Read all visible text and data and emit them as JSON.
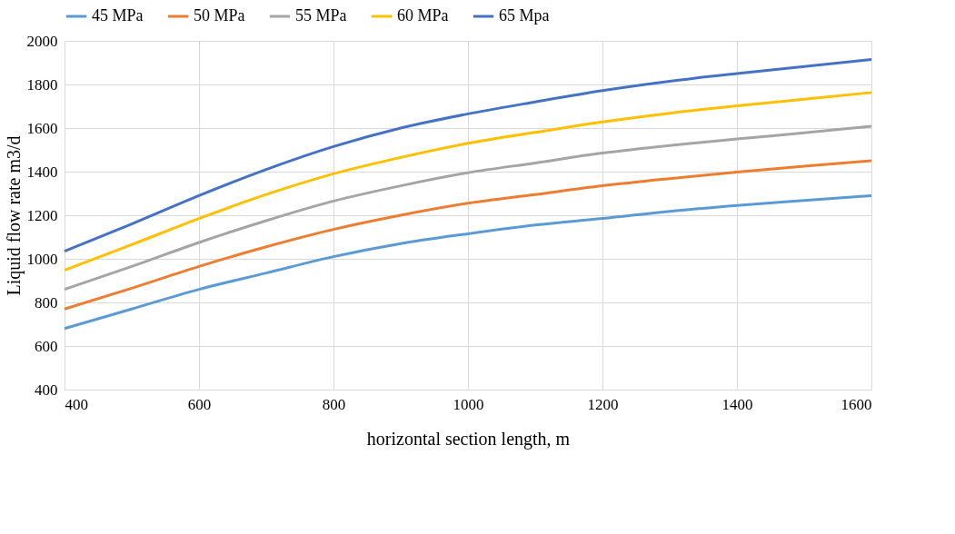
{
  "chart_data": {
    "type": "line",
    "xlabel": "horizontal section length, m",
    "ylabel": "Liquid flow rate m3/d",
    "x": [
      400,
      500,
      600,
      700,
      800,
      900,
      1000,
      1100,
      1200,
      1300,
      1400,
      1500,
      1600
    ],
    "series": [
      {
        "name": "45 MPa",
        "color": "#5b9bd5",
        "values": [
          680,
          770,
          860,
          935,
          1010,
          1070,
          1115,
          1155,
          1185,
          1218,
          1245,
          1268,
          1290
        ]
      },
      {
        "name": "50 MPa",
        "color": "#ed7d31",
        "values": [
          770,
          865,
          965,
          1055,
          1135,
          1200,
          1255,
          1295,
          1335,
          1368,
          1398,
          1425,
          1450
        ]
      },
      {
        "name": "55 MPa",
        "color": "#a5a5a5",
        "values": [
          860,
          965,
          1075,
          1175,
          1265,
          1335,
          1395,
          1440,
          1485,
          1520,
          1550,
          1578,
          1608
        ]
      },
      {
        "name": "60 MPa",
        "color": "#ffc000",
        "values": [
          948,
          1065,
          1185,
          1295,
          1390,
          1465,
          1530,
          1580,
          1628,
          1668,
          1702,
          1732,
          1763
        ]
      },
      {
        "name": "65 Mpa",
        "color": "#4472c4",
        "values": [
          1035,
          1160,
          1290,
          1410,
          1515,
          1600,
          1665,
          1720,
          1772,
          1815,
          1850,
          1882,
          1915
        ]
      }
    ],
    "xlim": [
      400,
      1600
    ],
    "xticks": [
      400,
      600,
      800,
      1000,
      1200,
      1400,
      1600
    ],
    "ylim": [
      400,
      2000
    ],
    "yticks": [
      400,
      600,
      800,
      1000,
      1200,
      1400,
      1600,
      1800,
      2000
    ],
    "grid": true,
    "legend": "top",
    "marker": "none",
    "line_style": "solid"
  }
}
